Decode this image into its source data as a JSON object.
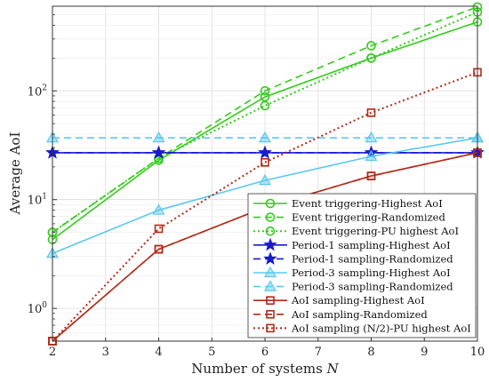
{
  "chart_data": {
    "type": "line",
    "title": "",
    "xlabel": "Number of systems",
    "xlabel_var": "N",
    "ylabel": "Average AoI",
    "y_scale": "log",
    "xlim": [
      2,
      10
    ],
    "ylim": [
      0.5,
      600
    ],
    "x_ticks": [
      2,
      3,
      4,
      5,
      6,
      7,
      8,
      9,
      10
    ],
    "y_ticks": [
      {
        "value": 1,
        "base": "10",
        "exp": "0"
      },
      {
        "value": 10,
        "base": "10",
        "exp": "1"
      },
      {
        "value": 100,
        "base": "10",
        "exp": "2"
      }
    ],
    "grid": true,
    "legend_position": "bottom-right",
    "x": [
      2,
      4,
      6,
      8,
      10
    ],
    "series": [
      {
        "name": "Event triggering-Highest AoI",
        "color": "#33cc1a",
        "dash": "solid",
        "marker": "circle",
        "values": [
          4.3,
          23,
          88,
          200,
          430
        ]
      },
      {
        "name": "Event triggering-Randomized",
        "color": "#33cc1a",
        "dash": "dashed",
        "marker": "circle",
        "values": [
          5.0,
          24,
          100,
          260,
          590
        ]
      },
      {
        "name": "Event triggering-PU highest AoI",
        "color": "#33cc1a",
        "dash": "dotted",
        "marker": "circle",
        "values": [
          5.0,
          24,
          73,
          200,
          530
        ]
      },
      {
        "name": "Period-1 sampling-Highest AoI",
        "color": "#1a1acc",
        "dash": "solid",
        "marker": "star",
        "values": [
          27,
          27,
          27,
          27,
          27
        ]
      },
      {
        "name": "Period-1 sampling-Randomized",
        "color": "#1a1acc",
        "dash": "dashed",
        "marker": "star",
        "values": [
          27,
          27,
          27,
          27,
          27
        ]
      },
      {
        "name": "Period-3 sampling-Highest AoI",
        "color": "#5bc8f0",
        "dash": "solid",
        "marker": "triangle",
        "values": [
          3.2,
          8.0,
          15,
          25,
          37
        ]
      },
      {
        "name": "Period-3 sampling-Randomized",
        "color": "#5bc8f0",
        "dash": "dashed",
        "marker": "triangle",
        "values": [
          37,
          37,
          37,
          37,
          37
        ]
      },
      {
        "name": "AoI sampling-Highest AoI",
        "color": "#b22a16",
        "dash": "solid",
        "marker": "square",
        "values": [
          0.5,
          3.5,
          8.5,
          16.5,
          27
        ]
      },
      {
        "name": "AoI sampling-Randomized",
        "color": "#b22a16",
        "dash": "dashed",
        "marker": "square",
        "values": [
          0.5,
          3.5,
          8.5,
          16.5,
          27
        ]
      },
      {
        "name": "AoI sampling (N/2)-PU highest AoI",
        "color": "#b22a16",
        "dash": "dotted",
        "marker": "square",
        "values": [
          0.5,
          5.4,
          22,
          63,
          148
        ]
      }
    ]
  }
}
